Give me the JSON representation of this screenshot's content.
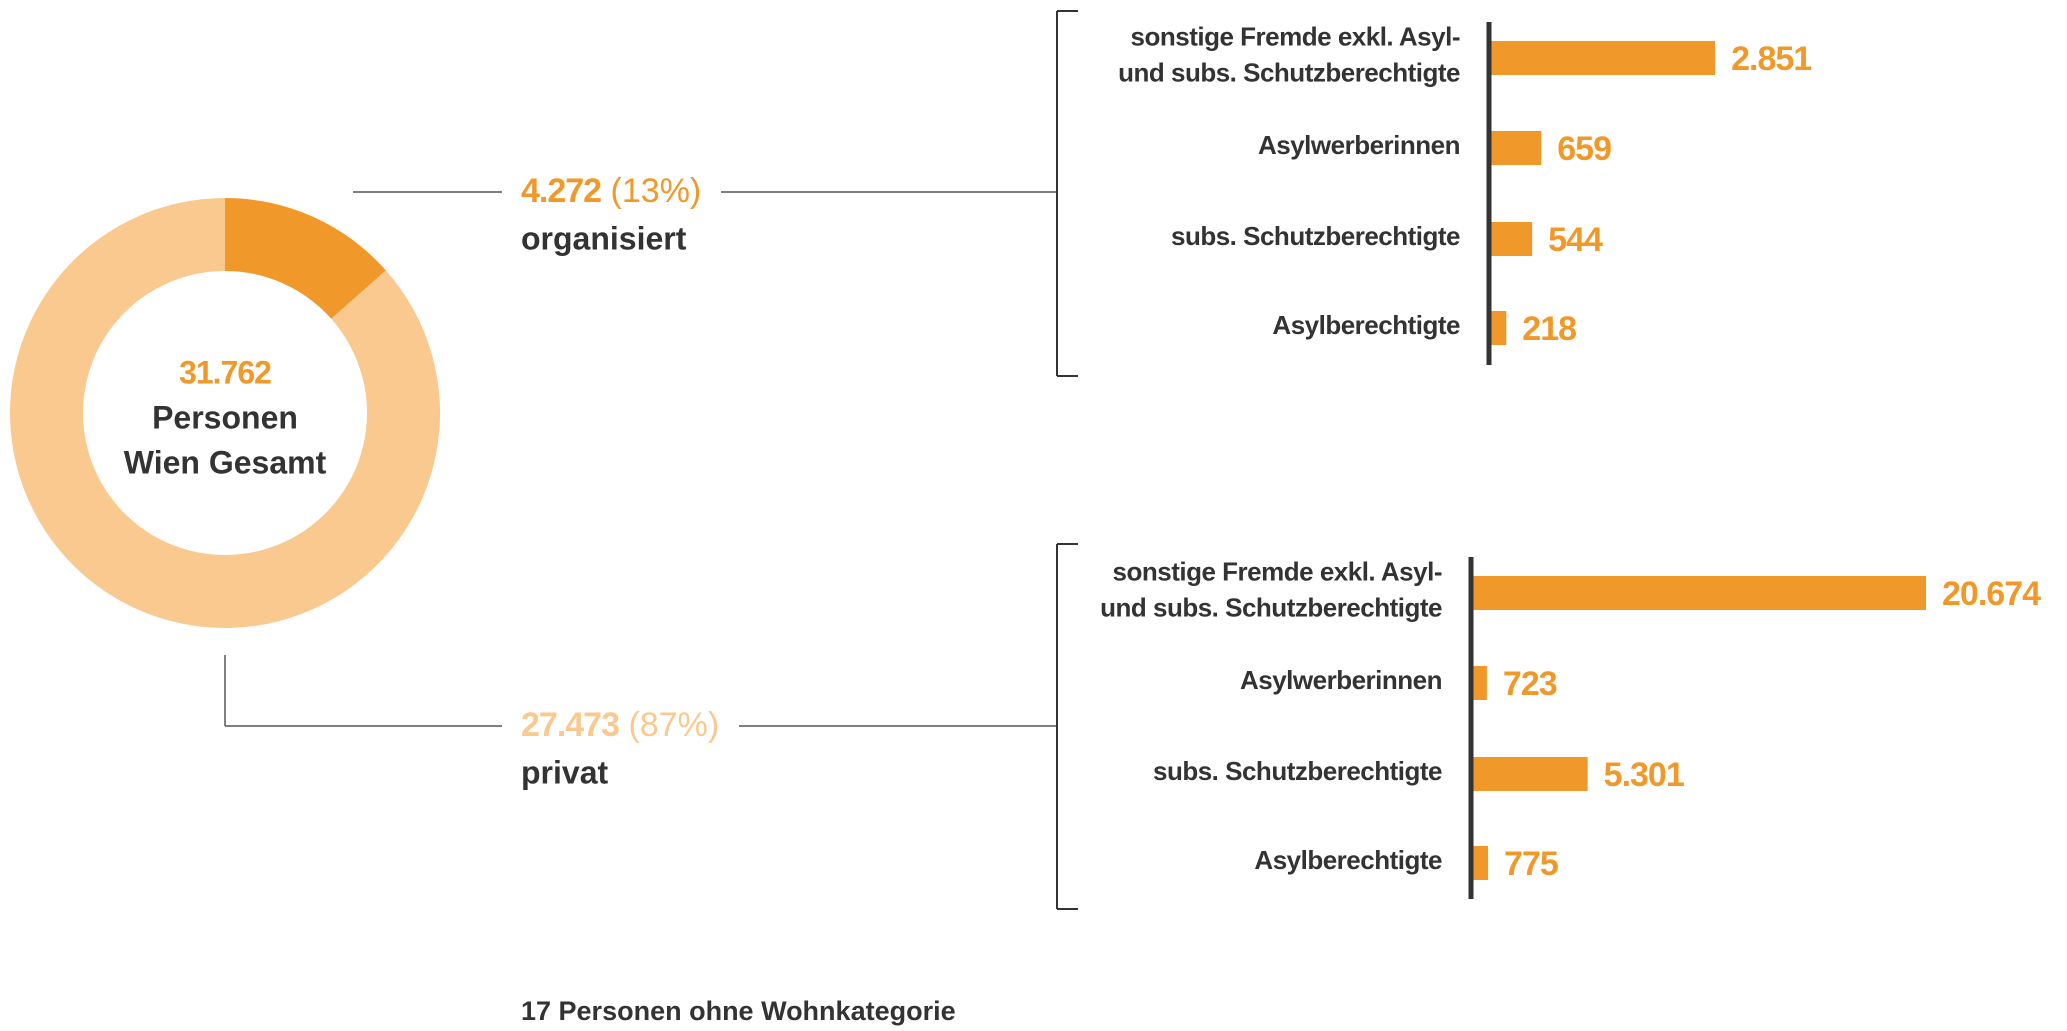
{
  "chart_data": [
    {
      "type": "donut",
      "categories": [
        "organisiert",
        "privat"
      ],
      "values": [
        4272,
        27473
      ],
      "value_labels": [
        "4.272",
        "27.473"
      ],
      "percents": [
        13,
        87
      ],
      "percent_labels": [
        "(13%)",
        "(87%)"
      ],
      "colors": [
        "#f0992a",
        "#f9c98f"
      ],
      "total": 31762,
      "total_label": "31.762",
      "center_text": [
        "Personen",
        "Wien Gesamt"
      ]
    },
    {
      "type": "bar",
      "orientation": "horizontal",
      "categories": [
        "sonstige Fremde exkl. Asyl-\nund subs. Schutzberechtigte",
        "Asylwerberinnen",
        "subs. Schutzberechtigte",
        "Asylberechtigte"
      ],
      "values": [
        2851,
        659,
        544,
        218
      ],
      "value_labels": [
        "2.851",
        "659",
        "544",
        "218"
      ],
      "color": "#f0992a",
      "xlim": [
        0,
        5800
      ]
    },
    {
      "type": "bar",
      "orientation": "horizontal",
      "categories": [
        "sonstige Fremde exkl. Asyl-\nund subs. Schutzberechtigte",
        "Asylwerberinnen",
        "subs. Schutzberechtigte",
        "Asylberechtigte"
      ],
      "values": [
        20674,
        723,
        5301,
        775
      ],
      "value_labels": [
        "20.674",
        "723",
        "5.301",
        "775"
      ],
      "color": "#f0992a",
      "xlim": [
        0,
        20900
      ]
    }
  ],
  "note": "17 Personen ohne Wohnkategorie"
}
